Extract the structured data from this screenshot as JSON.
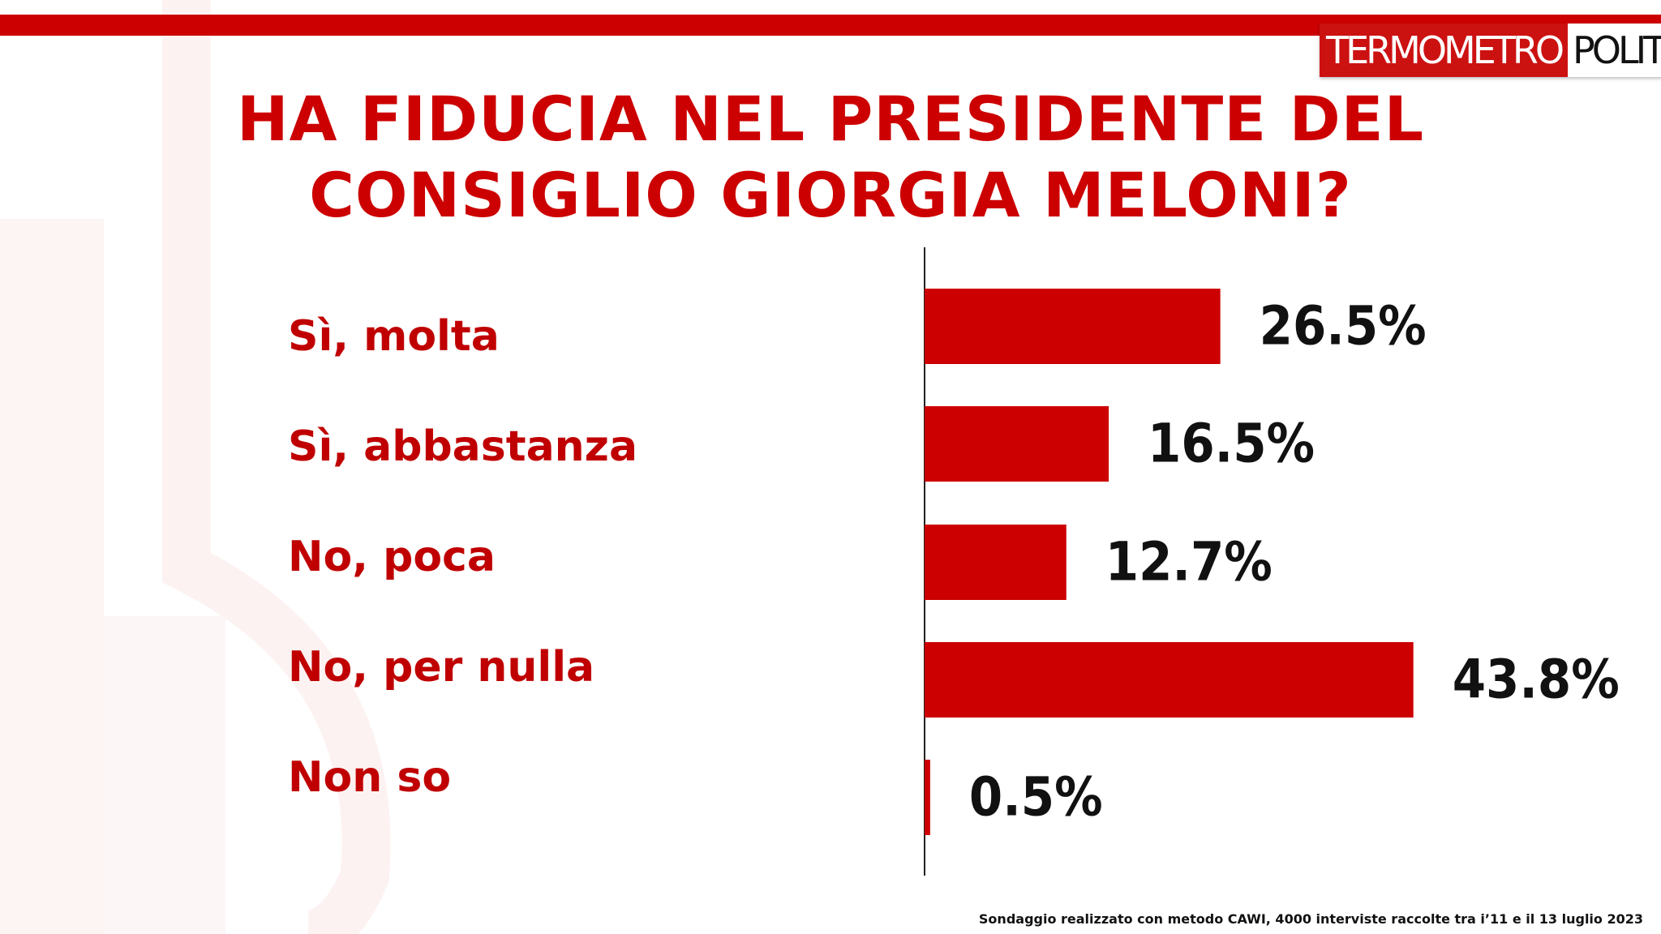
{
  "logo": {
    "part1": "TERMOMETRO",
    "part2": "POLITICO"
  },
  "title": {
    "line1": "HA FIDUCIA NEL PRESIDENTE DEL",
    "line2": "CONSIGLIO GIORGIA MELONI?"
  },
  "chart_data": {
    "type": "bar",
    "orientation": "horizontal",
    "title": "HA FIDUCIA NEL PRESIDENTE DEL CONSIGLIO GIORGIA MELONI?",
    "categories": [
      "Sì, molta",
      "Sì, abbastanza",
      "No, poca",
      "No, per nulla",
      "Non so"
    ],
    "values": [
      26.5,
      16.5,
      12.7,
      43.8,
      0.5
    ],
    "value_labels": [
      "26.5%",
      "16.5%",
      "12.7%",
      "43.8%",
      "0.5%"
    ],
    "unit": "%",
    "bar_color": "#cc0000",
    "grid": false,
    "legend": "none"
  },
  "footnote": "Sondaggio realizzato con metodo CAWI, 4000 interviste raccolte tra i’11 e il 13 luglio 2023"
}
